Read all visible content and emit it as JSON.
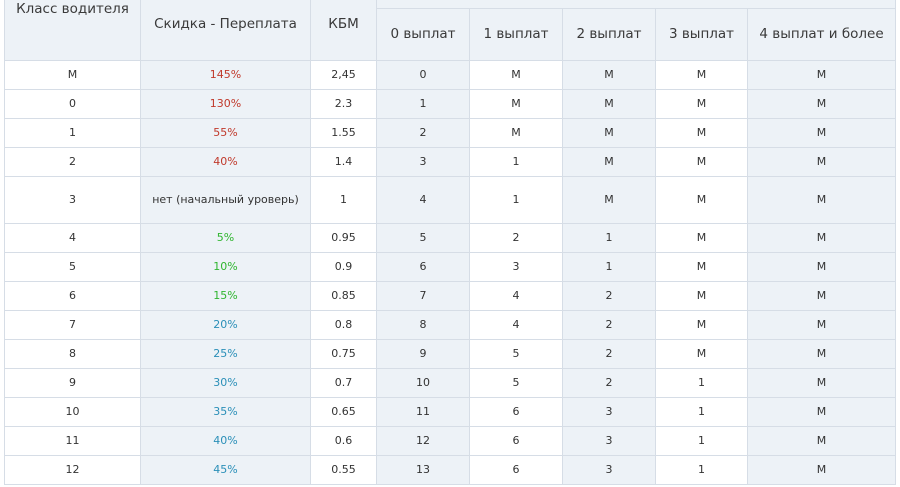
{
  "colors": {
    "header_bg": "#edf2f7",
    "grid_border": "#d6dde6",
    "surcharge_red": "#c0392b",
    "discount_green": "#2fb52f",
    "discount_blue": "#2a8fb8",
    "text_default": "#333333"
  },
  "table": {
    "headers": {
      "class": "Класс водителя",
      "discount": "Скидка - Переплата",
      "kbm": "КБМ",
      "payouts": [
        "0 выплат",
        "1 выплат",
        "2 выплат",
        "3 выплат",
        "4 выплат и более"
      ]
    },
    "rows": [
      {
        "cls": "М",
        "discount": "145%",
        "tone": "surcharge",
        "kbm": "2,45",
        "p": [
          "0",
          "М",
          "М",
          "М",
          "М"
        ]
      },
      {
        "cls": "0",
        "discount": "130%",
        "tone": "surcharge",
        "kbm": "2.3",
        "p": [
          "1",
          "М",
          "М",
          "М",
          "М"
        ]
      },
      {
        "cls": "1",
        "discount": "55%",
        "tone": "surcharge",
        "kbm": "1.55",
        "p": [
          "2",
          "М",
          "М",
          "М",
          "М"
        ]
      },
      {
        "cls": "2",
        "discount": "40%",
        "tone": "surcharge",
        "kbm": "1.4",
        "p": [
          "3",
          "1",
          "М",
          "М",
          "М"
        ]
      },
      {
        "cls": "3",
        "discount": "нет (начальный уроверь)",
        "tone": "neutral",
        "kbm": "1",
        "p": [
          "4",
          "1",
          "М",
          "М",
          "М"
        ]
      },
      {
        "cls": "4",
        "discount": "5%",
        "tone": "green",
        "kbm": "0.95",
        "p": [
          "5",
          "2",
          "1",
          "М",
          "М"
        ]
      },
      {
        "cls": "5",
        "discount": "10%",
        "tone": "green",
        "kbm": "0.9",
        "p": [
          "6",
          "3",
          "1",
          "М",
          "М"
        ]
      },
      {
        "cls": "6",
        "discount": "15%",
        "tone": "green",
        "kbm": "0.85",
        "p": [
          "7",
          "4",
          "2",
          "М",
          "М"
        ]
      },
      {
        "cls": "7",
        "discount": "20%",
        "tone": "blue",
        "kbm": "0.8",
        "p": [
          "8",
          "4",
          "2",
          "М",
          "М"
        ]
      },
      {
        "cls": "8",
        "discount": "25%",
        "tone": "blue",
        "kbm": "0.75",
        "p": [
          "9",
          "5",
          "2",
          "М",
          "М"
        ]
      },
      {
        "cls": "9",
        "discount": "30%",
        "tone": "blue",
        "kbm": "0.7",
        "p": [
          "10",
          "5",
          "2",
          "1",
          "М"
        ]
      },
      {
        "cls": "10",
        "discount": "35%",
        "tone": "blue",
        "kbm": "0.65",
        "p": [
          "11",
          "6",
          "3",
          "1",
          "М"
        ]
      },
      {
        "cls": "11",
        "discount": "40%",
        "tone": "blue",
        "kbm": "0.6",
        "p": [
          "12",
          "6",
          "3",
          "1",
          "М"
        ]
      },
      {
        "cls": "12",
        "discount": "45%",
        "tone": "blue",
        "kbm": "0.55",
        "p": [
          "13",
          "6",
          "3",
          "1",
          "М"
        ]
      }
    ]
  }
}
